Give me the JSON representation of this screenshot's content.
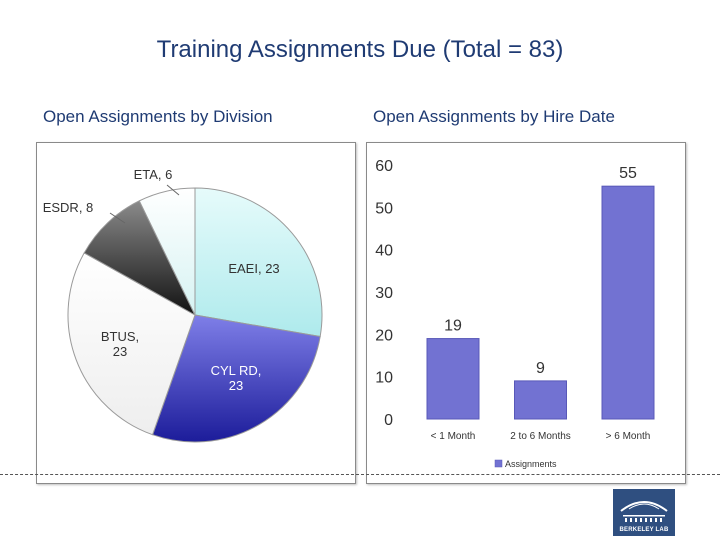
{
  "title": "Training Assignments Due (Total = 83)",
  "left_subtitle": "Open Assignments by Division",
  "right_subtitle": "Open Assignments by Hire Date",
  "logo_text": "BERKELEY LAB",
  "chart_data": [
    {
      "type": "pie",
      "slices": [
        {
          "label": "EAEI, 23",
          "value": 23,
          "color": "#bdf1f2"
        },
        {
          "label": "CYL RD, 23",
          "value": 23,
          "color": "#4040c8"
        },
        {
          "label": "BTUS, 23",
          "value": 23,
          "color": "#ffffff"
        },
        {
          "label": "ESDR, 8",
          "value": 8,
          "color": "#3a3a3a"
        },
        {
          "label": "ETA, 6",
          "value": 6,
          "color": "#e8f8f8"
        }
      ]
    },
    {
      "type": "bar",
      "categories": [
        "< 1 Month",
        "2 to 6 Months",
        "> 6 Month"
      ],
      "series": [
        {
          "name": "Assignments",
          "values": [
            19,
            9,
            55
          ],
          "color": "#7272d2"
        }
      ],
      "ylim": [
        0,
        60
      ],
      "yticks": [
        "0",
        "10",
        "20",
        "30",
        "40",
        "50",
        "60"
      ],
      "data_labels": [
        "19",
        "9",
        "55"
      ],
      "legend": "bottom",
      "grid": false
    }
  ]
}
